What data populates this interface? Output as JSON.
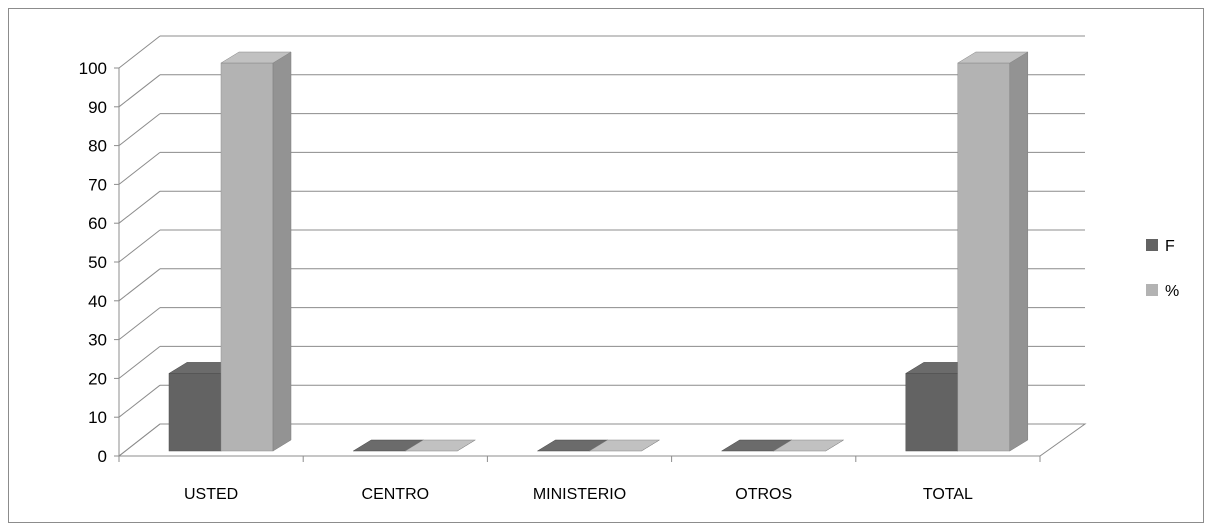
{
  "chart_data": {
    "type": "bar",
    "style": "3d-clustered-column",
    "categories": [
      "USTED",
      "CENTRO",
      "MINISTERIO",
      "OTROS",
      "TOTAL"
    ],
    "series": [
      {
        "name": "F",
        "values": [
          20,
          0,
          0,
          0,
          20
        ],
        "color": "#636363"
      },
      {
        "name": "%",
        "values": [
          100,
          0,
          0,
          0,
          100
        ],
        "color": "#b3b3b3"
      }
    ],
    "yticks": [
      "0",
      "10",
      "20",
      "30",
      "40",
      "50",
      "60",
      "70",
      "80",
      "90",
      "100"
    ],
    "ylim": [
      0,
      100
    ],
    "grid": true,
    "legend_position": "right"
  }
}
